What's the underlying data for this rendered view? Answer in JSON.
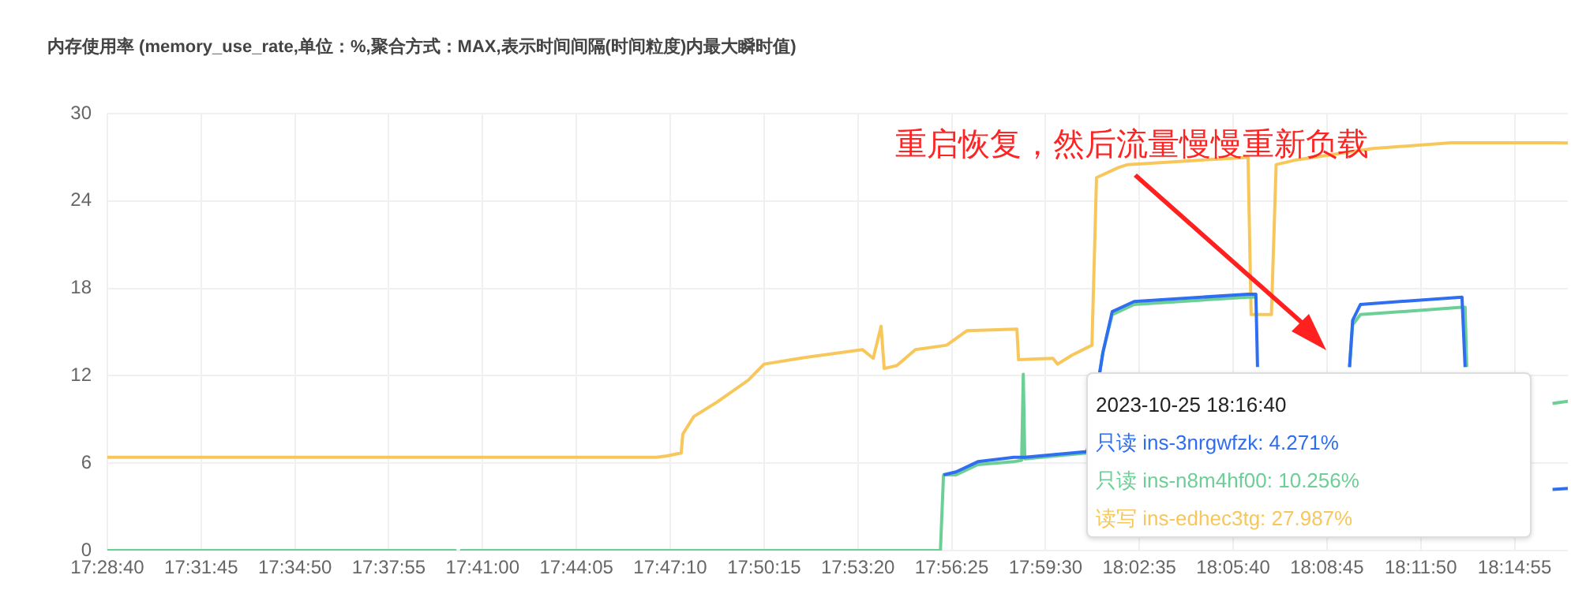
{
  "chart_data": {
    "type": "line",
    "title": "内存使用率 (memory_use_rate,单位：%,聚合方式：MAX,表示时间间隔(时间粒度)内最大瞬时值)",
    "annotations": [
      "2023-10-25 18:16:40",
      "只读 ins-3nrgwfzk: 4.271%",
      "只读 ins-n8m4hf00: 10.256%",
      "读写 ins-edhec3tg: 27.987%",
      "重启恢复，然后流量慢慢重新负载"
    ],
    "xlim": [
      17.47778,
      18.27778
    ],
    "xticks": [
      {
        "value": 17.47778,
        "label": "17:28:40"
      },
      {
        "value": 17.52917,
        "label": "17:31:45"
      },
      {
        "value": 17.58056,
        "label": "17:34:50"
      },
      {
        "value": 17.63194,
        "label": "17:37:55"
      },
      {
        "value": 17.68333,
        "label": "17:41:00"
      },
      {
        "value": 17.73472,
        "label": "17:44:05"
      },
      {
        "value": 17.78611,
        "label": "17:47:10"
      },
      {
        "value": 17.8375,
        "label": "17:50:15"
      },
      {
        "value": 17.88889,
        "label": "17:53:20"
      },
      {
        "value": 17.94028,
        "label": "17:56:25"
      },
      {
        "value": 17.99167,
        "label": "17:59:30"
      },
      {
        "value": 18.04306,
        "label": "18:02:35"
      },
      {
        "value": 18.09444,
        "label": "18:05:40"
      },
      {
        "value": 18.14583,
        "label": "18:08:45"
      },
      {
        "value": 18.19722,
        "label": "18:11:50"
      },
      {
        "value": 18.24861,
        "label": "18:14:55"
      }
    ],
    "ylim": [
      0,
      30
    ],
    "yticks": [
      0,
      6,
      12,
      18,
      24,
      30
    ],
    "grid": true,
    "legend": false,
    "marker": "none",
    "line_style": "solid",
    "series": [
      {
        "color": "#2f6ef0",
        "x": [
          17.9358,
          17.9427,
          17.9546,
          17.9743,
          17.9803,
          18.0145,
          18.0231,
          18.0282,
          18.0402,
          18.1026,
          18.1069,
          18.1078,
          18.1085,
          18.1582,
          18.1599,
          18.1642,
          18.2198,
          18.2215,
          18.223,
          18.2694,
          18.27778
        ],
        "values": [
          5.2,
          5.4,
          6.1,
          6.4,
          6.4,
          6.8,
          13.6,
          16.4,
          17.1,
          17.6,
          17.6,
          12.6,
          null,
          12.6,
          15.8,
          16.9,
          17.4,
          12.6,
          null,
          4.2,
          4.271
        ]
      },
      {
        "color": "#6ccf96",
        "x": [
          17.47778,
          17.669,
          17.6695,
          17.671,
          17.9341,
          17.9358,
          17.9427,
          17.9546,
          17.9743,
          17.9786,
          17.9795,
          17.9803,
          18.0145,
          18.0231,
          18.0282,
          18.0402,
          18.1026,
          18.1069,
          18.1078,
          18.1085,
          18.1582,
          18.1599,
          18.1642,
          18.2198,
          18.2215,
          18.2224,
          18.223,
          18.2694,
          18.27778
        ],
        "values": [
          0,
          0,
          null,
          0,
          0,
          5.2,
          5.2,
          5.9,
          6.1,
          6.2,
          12.1,
          6.3,
          6.7,
          13.6,
          16.2,
          16.9,
          17.4,
          17.4,
          null,
          null,
          12.6,
          15.5,
          16.2,
          16.7,
          16.7,
          12.6,
          null,
          10.1,
          10.256
        ]
      },
      {
        "color": "#f7c75c",
        "x": [
          17.47778,
          17.7784,
          17.7844,
          17.7921,
          17.793,
          17.799,
          17.8118,
          17.8289,
          17.8375,
          17.8571,
          17.8913,
          17.8973,
          17.9016,
          17.9033,
          17.9102,
          17.9204,
          17.9375,
          17.9487,
          17.976,
          17.9769,
          17.9957,
          17.9983,
          18.006,
          18.0171,
          18.0196,
          18.0316,
          18.0367,
          18.1026,
          18.1043,
          18.1154,
          18.118,
          18.1283,
          18.171,
          18.2138,
          18.2694,
          18.27778
        ],
        "values": [
          6.4,
          6.4,
          6.5,
          6.7,
          8,
          9.2,
          10.2,
          11.7,
          12.8,
          13.2,
          13.8,
          13.2,
          15.4,
          12.5,
          12.7,
          13.8,
          14.1,
          15.1,
          15.2,
          13.1,
          13.2,
          12.8,
          13.4,
          14.1,
          25.6,
          26.3,
          26.5,
          27,
          16.2,
          16.2,
          26.5,
          26.8,
          27.6,
          28,
          28,
          27.987
        ]
      }
    ]
  }
}
